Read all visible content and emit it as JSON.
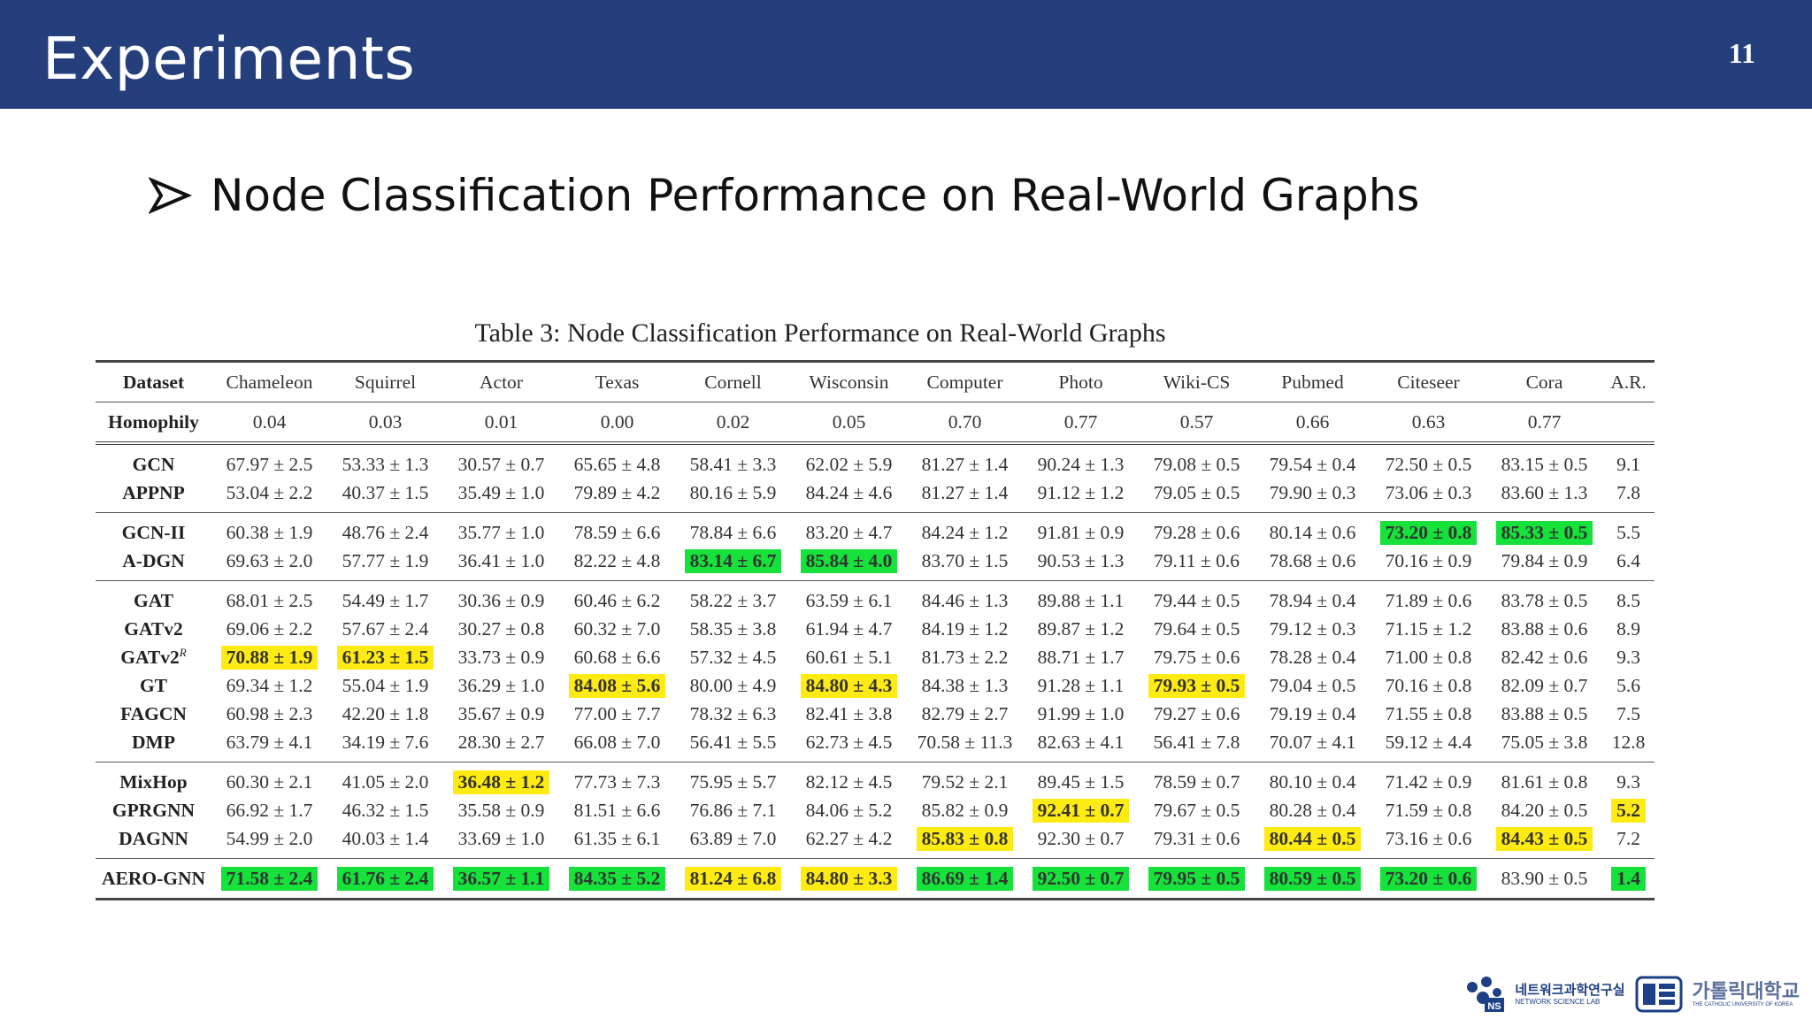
{
  "header": {
    "title": "Experiments",
    "page_number": "11"
  },
  "bullet": {
    "text": "Node Classification Performance on Real-World Graphs"
  },
  "table": {
    "caption": "Table 3: Node Classification Performance on Real-World Graphs",
    "columns": [
      "Dataset",
      "Chameleon",
      "Squirrel",
      "Actor",
      "Texas",
      "Cornell",
      "Wisconsin",
      "Computer",
      "Photo",
      "Wiki-CS",
      "Pubmed",
      "Citeseer",
      "Cora",
      "A.R."
    ],
    "homophily": [
      "Homophily",
      "0.04",
      "0.03",
      "0.01",
      "0.00",
      "0.02",
      "0.05",
      "0.70",
      "0.77",
      "0.57",
      "0.66",
      "0.63",
      "0.77",
      ""
    ],
    "groups": [
      {
        "rows": [
          {
            "name": "GCN",
            "cells": [
              "67.97 ± 2.5",
              "53.33 ± 1.3",
              "30.57 ± 0.7",
              "65.65 ± 4.8",
              "58.41 ± 3.3",
              "62.02 ± 5.9",
              "81.27 ± 1.4",
              "90.24 ± 1.3",
              "79.08 ± 0.5",
              "79.54 ± 0.4",
              "72.50 ± 0.5",
              "83.15 ± 0.5",
              "9.1"
            ],
            "hl": [
              "",
              "",
              "",
              "",
              "",
              "",
              "",
              "",
              "",
              "",
              "",
              "",
              ""
            ]
          },
          {
            "name": "APPNP",
            "cells": [
              "53.04 ± 2.2",
              "40.37 ± 1.5",
              "35.49 ± 1.0",
              "79.89 ± 4.2",
              "80.16 ± 5.9",
              "84.24 ± 4.6",
              "81.27 ± 1.4",
              "91.12 ± 1.2",
              "79.05 ± 0.5",
              "79.90 ± 0.3",
              "73.06 ± 0.3",
              "83.60 ± 1.3",
              "7.8"
            ],
            "hl": [
              "",
              "",
              "",
              "",
              "",
              "",
              "",
              "",
              "",
              "",
              "",
              "",
              ""
            ]
          }
        ]
      },
      {
        "rows": [
          {
            "name": "GCN-II",
            "cells": [
              "60.38 ± 1.9",
              "48.76 ± 2.4",
              "35.77 ± 1.0",
              "78.59 ± 6.6",
              "78.84 ± 6.6",
              "83.20 ± 4.7",
              "84.24 ± 1.2",
              "91.81 ± 0.9",
              "79.28 ± 0.6",
              "80.14 ± 0.6",
              "73.20 ± 0.8",
              "85.33 ± 0.5",
              "5.5"
            ],
            "hl": [
              "",
              "",
              "",
              "",
              "",
              "",
              "",
              "",
              "",
              "",
              "g",
              "g",
              ""
            ]
          },
          {
            "name": "A-DGN",
            "cells": [
              "69.63 ± 2.0",
              "57.77 ± 1.9",
              "36.41 ± 1.0",
              "82.22 ± 4.8",
              "83.14 ± 6.7",
              "85.84 ± 4.0",
              "83.70 ± 1.5",
              "90.53 ± 1.3",
              "79.11 ± 0.6",
              "78.68 ± 0.6",
              "70.16 ± 0.9",
              "79.84 ± 0.9",
              "6.4"
            ],
            "hl": [
              "",
              "",
              "",
              "",
              "g",
              "g",
              "",
              "",
              "",
              "",
              "",
              "",
              ""
            ]
          }
        ]
      },
      {
        "rows": [
          {
            "name": "GAT",
            "cells": [
              "68.01 ± 2.5",
              "54.49 ± 1.7",
              "30.36 ± 0.9",
              "60.46 ± 6.2",
              "58.22 ± 3.7",
              "63.59 ± 6.1",
              "84.46 ± 1.3",
              "89.88 ± 1.1",
              "79.44 ± 0.5",
              "78.94 ± 0.4",
              "71.89 ± 0.6",
              "83.78 ± 0.5",
              "8.5"
            ],
            "hl": [
              "",
              "",
              "",
              "",
              "",
              "",
              "",
              "",
              "",
              "",
              "",
              "",
              ""
            ]
          },
          {
            "name": "GATv2",
            "cells": [
              "69.06 ± 2.2",
              "57.67 ± 2.4",
              "30.27 ± 0.8",
              "60.32 ± 7.0",
              "58.35 ± 3.8",
              "61.94 ± 4.7",
              "84.19 ± 1.2",
              "89.87 ± 1.2",
              "79.64 ± 0.5",
              "79.12 ± 0.3",
              "71.15 ± 1.2",
              "83.88 ± 0.6",
              "8.9"
            ],
            "hl": [
              "",
              "",
              "",
              "",
              "",
              "",
              "",
              "",
              "",
              "",
              "",
              "",
              ""
            ]
          },
          {
            "name": "GATv2",
            "sup": "R",
            "cells": [
              "70.88 ± 1.9",
              "61.23 ± 1.5",
              "33.73 ± 0.9",
              "60.68 ± 6.6",
              "57.32 ± 4.5",
              "60.61 ± 5.1",
              "81.73 ± 2.2",
              "88.71 ± 1.7",
              "79.75 ± 0.6",
              "78.28 ± 0.4",
              "71.00 ± 0.8",
              "82.42 ± 0.6",
              "9.3"
            ],
            "hl": [
              "y",
              "y",
              "",
              "",
              "",
              "",
              "",
              "",
              "",
              "",
              "",
              "",
              ""
            ]
          },
          {
            "name": "GT",
            "cells": [
              "69.34 ± 1.2",
              "55.04 ± 1.9",
              "36.29 ± 1.0",
              "84.08 ± 5.6",
              "80.00 ± 4.9",
              "84.80 ± 4.3",
              "84.38 ± 1.3",
              "91.28 ± 1.1",
              "79.93 ± 0.5",
              "79.04 ± 0.5",
              "70.16 ± 0.8",
              "82.09 ± 0.7",
              "5.6"
            ],
            "hl": [
              "",
              "",
              "",
              "y",
              "",
              "y",
              "",
              "",
              "y",
              "",
              "",
              "",
              ""
            ]
          },
          {
            "name": "FAGCN",
            "cells": [
              "60.98 ± 2.3",
              "42.20 ± 1.8",
              "35.67 ± 0.9",
              "77.00 ± 7.7",
              "78.32 ± 6.3",
              "82.41 ± 3.8",
              "82.79 ± 2.7",
              "91.99 ± 1.0",
              "79.27 ± 0.6",
              "79.19 ± 0.4",
              "71.55 ± 0.8",
              "83.88 ± 0.5",
              "7.5"
            ],
            "hl": [
              "",
              "",
              "",
              "",
              "",
              "",
              "",
              "",
              "",
              "",
              "",
              "",
              ""
            ]
          },
          {
            "name": "DMP",
            "cells": [
              "63.79 ± 4.1",
              "34.19 ± 7.6",
              "28.30 ± 2.7",
              "66.08 ± 7.0",
              "56.41 ± 5.5",
              "62.73 ± 4.5",
              "70.58 ± 11.3",
              "82.63 ± 4.1",
              "56.41 ± 7.8",
              "70.07 ± 4.1",
              "59.12 ± 4.4",
              "75.05 ± 3.8",
              "12.8"
            ],
            "hl": [
              "",
              "",
              "",
              "",
              "",
              "",
              "",
              "",
              "",
              "",
              "",
              "",
              ""
            ]
          }
        ]
      },
      {
        "rows": [
          {
            "name": "MixHop",
            "cells": [
              "60.30 ± 2.1",
              "41.05 ± 2.0",
              "36.48 ± 1.2",
              "77.73 ± 7.3",
              "75.95 ± 5.7",
              "82.12 ± 4.5",
              "79.52 ± 2.1",
              "89.45 ± 1.5",
              "78.59 ± 0.7",
              "80.10 ± 0.4",
              "71.42 ± 0.9",
              "81.61 ± 0.8",
              "9.3"
            ],
            "hl": [
              "",
              "",
              "y",
              "",
              "",
              "",
              "",
              "",
              "",
              "",
              "",
              "",
              ""
            ]
          },
          {
            "name": "GPRGNN",
            "cells": [
              "66.92 ± 1.7",
              "46.32 ± 1.5",
              "35.58 ± 0.9",
              "81.51 ± 6.6",
              "76.86 ± 7.1",
              "84.06 ± 5.2",
              "85.82 ± 0.9",
              "92.41 ± 0.7",
              "79.67 ± 0.5",
              "80.28 ± 0.4",
              "71.59 ± 0.8",
              "84.20 ± 0.5",
              "5.2"
            ],
            "hl": [
              "",
              "",
              "",
              "",
              "",
              "",
              "",
              "y",
              "",
              "",
              "",
              "",
              "y"
            ]
          },
          {
            "name": "DAGNN",
            "cells": [
              "54.99 ± 2.0",
              "40.03 ± 1.4",
              "33.69 ± 1.0",
              "61.35 ± 6.1",
              "63.89 ± 7.0",
              "62.27 ± 4.2",
              "85.83 ± 0.8",
              "92.30 ± 0.7",
              "79.31 ± 0.6",
              "80.44 ± 0.5",
              "73.16 ± 0.6",
              "84.43 ± 0.5",
              "7.2"
            ],
            "hl": [
              "",
              "",
              "",
              "",
              "",
              "",
              "y",
              "",
              "",
              "y",
              "",
              "y",
              ""
            ]
          }
        ]
      },
      {
        "rows": [
          {
            "name": "AERO-GNN",
            "cells": [
              "71.58 ± 2.4",
              "61.76 ± 2.4",
              "36.57 ± 1.1",
              "84.35 ± 5.2",
              "81.24 ± 6.8",
              "84.80 ± 3.3",
              "86.69 ± 1.4",
              "92.50 ± 0.7",
              "79.95 ± 0.5",
              "80.59 ± 0.5",
              "73.20 ± 0.6",
              "83.90 ± 0.5",
              "1.4"
            ],
            "hl": [
              "g",
              "g",
              "g",
              "g",
              "y",
              "y",
              "g",
              "g",
              "g",
              "g",
              "g",
              "",
              "g"
            ]
          }
        ]
      }
    ]
  },
  "logos": {
    "lab_name_ko": "네트워크과학연구실",
    "lab_name_en": "NETWORK SCIENCE LAB",
    "lab_badge": "NS",
    "university_ko": "가톨릭대학교",
    "university_en": "THE CATHOLIC UNIVERSITY OF KOREA"
  },
  "colors": {
    "header_bg": "#243f7b",
    "highlight_best": "#17e13b",
    "highlight_second": "#ffeb14"
  }
}
